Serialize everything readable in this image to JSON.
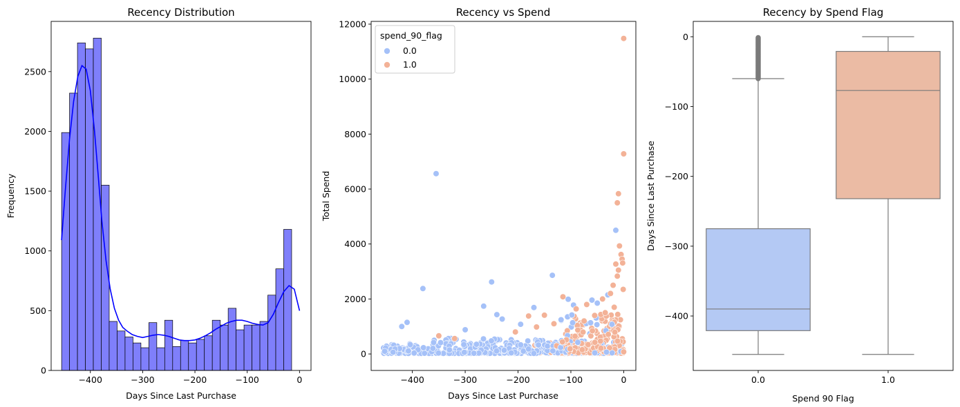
{
  "chart_data": [
    {
      "type": "bar",
      "title": "Recency Distribution",
      "xlabel": "Days Since Last Purchase",
      "ylabel": "Frequency",
      "xlim": [
        -475,
        22
      ],
      "ylim": [
        0,
        2920
      ],
      "xticks": [
        -400,
        -300,
        -200,
        -100,
        0
      ],
      "yticks": [
        0,
        500,
        1000,
        1500,
        2000,
        2500
      ],
      "bin_start": -455,
      "bin_width": 15.17,
      "values": [
        1990,
        2320,
        2740,
        2690,
        2780,
        1550,
        410,
        330,
        280,
        230,
        190,
        400,
        190,
        420,
        200,
        250,
        230,
        260,
        290,
        420,
        380,
        520,
        340,
        380,
        380,
        410,
        630,
        850,
        1180
      ],
      "kde": {
        "x": [
          -455,
          -448,
          -440,
          -432,
          -424,
          -416,
          -408,
          -400,
          -392,
          -385,
          -378,
          -370,
          -362,
          -354,
          -346,
          -338,
          -330,
          -320,
          -310,
          -300,
          -290,
          -280,
          -270,
          -260,
          -250,
          -240,
          -230,
          -220,
          -210,
          -200,
          -190,
          -180,
          -170,
          -160,
          -150,
          -140,
          -130,
          -120,
          -110,
          -100,
          -90,
          -80,
          -70,
          -60,
          -50,
          -40,
          -30,
          -20,
          -10,
          0
        ],
        "y": [
          1090,
          1500,
          1930,
          2250,
          2460,
          2550,
          2520,
          2340,
          2000,
          1630,
          1250,
          920,
          680,
          520,
          420,
          360,
          330,
          300,
          285,
          275,
          285,
          295,
          300,
          295,
          285,
          270,
          255,
          250,
          250,
          255,
          270,
          290,
          315,
          345,
          370,
          395,
          410,
          420,
          420,
          410,
          395,
          385,
          380,
          400,
          470,
          570,
          660,
          710,
          680,
          500
        ]
      },
      "bar_color": "#7f7ffb",
      "line_color": "#0000ff"
    },
    {
      "type": "scatter",
      "title": "Recency vs Spend",
      "xlabel": "Days Since Last Purchase",
      "ylabel": "Total Spend",
      "xlim": [
        -478,
        23
      ],
      "ylim": [
        -600,
        12100
      ],
      "xticks": [
        -400,
        -300,
        -200,
        -100,
        0
      ],
      "yticks": [
        0,
        2000,
        4000,
        6000,
        8000,
        10000,
        12000
      ],
      "legend": {
        "title": "spend_90_flag",
        "placement": "upper-left",
        "entries": [
          {
            "label": "0.0",
            "color": "#a5c1f8"
          },
          {
            "label": "1.0",
            "color": "#f3b297"
          }
        ]
      },
      "highlight_points": {
        "flag0": [
          [
            -355,
            6560
          ],
          [
            -380,
            2380
          ],
          [
            -250,
            2620
          ],
          [
            -135,
            2860
          ],
          [
            -265,
            1740
          ],
          [
            -170,
            1690
          ],
          [
            -240,
            1430
          ],
          [
            -105,
            1990
          ],
          [
            -95,
            1780
          ],
          [
            -60,
            1960
          ],
          [
            -410,
            1150
          ],
          [
            -420,
            1000
          ],
          [
            -300,
            880
          ],
          [
            -230,
            1270
          ],
          [
            -195,
            1080
          ],
          [
            -15,
            4500
          ],
          [
            -30,
            2150
          ],
          [
            -50,
            1850
          ]
        ],
        "flag1": [
          [
            0,
            11480
          ],
          [
            0,
            7280
          ],
          [
            -10,
            5830
          ],
          [
            -12,
            5500
          ],
          [
            -8,
            3930
          ],
          [
            -5,
            3620
          ],
          [
            -3,
            3450
          ],
          [
            -2,
            3310
          ],
          [
            -15,
            3270
          ],
          [
            -10,
            3050
          ],
          [
            -12,
            2830
          ],
          [
            -20,
            2500
          ],
          [
            -115,
            2080
          ],
          [
            -90,
            1640
          ],
          [
            -150,
            1410
          ],
          [
            -180,
            1380
          ],
          [
            -70,
            1800
          ],
          [
            -40,
            2000
          ],
          [
            -1,
            2350
          ],
          [
            -25,
            2200
          ],
          [
            -350,
            660
          ],
          [
            -320,
            560
          ],
          [
            -205,
            800
          ],
          [
            -165,
            980
          ],
          [
            -132,
            1100
          ],
          [
            -75,
            1200
          ],
          [
            -55,
            1400
          ],
          [
            -35,
            1500
          ],
          [
            -18,
            1700
          ]
        ]
      }
    },
    {
      "type": "box",
      "title": "Recency by Spend Flag",
      "xlabel": "Spend 90 Flag",
      "ylabel": "Days Since Last Purchase",
      "ylim": [
        -478,
        22
      ],
      "yticks": [
        0,
        -100,
        -200,
        -300,
        -400
      ],
      "categories": [
        "0.0",
        "1.0"
      ],
      "boxes": [
        {
          "category": "0.0",
          "whisker_low": -455,
          "q1": -421,
          "median": -390,
          "q3": -275,
          "whisker_high": -60,
          "outliers_from": -60,
          "outliers_to": 0,
          "color": "#b4c9f4"
        },
        {
          "category": "1.0",
          "whisker_low": -455,
          "q1": -232,
          "median": -77,
          "q3": -21,
          "whisker_high": 0,
          "color": "#ebbba4"
        }
      ]
    }
  ]
}
